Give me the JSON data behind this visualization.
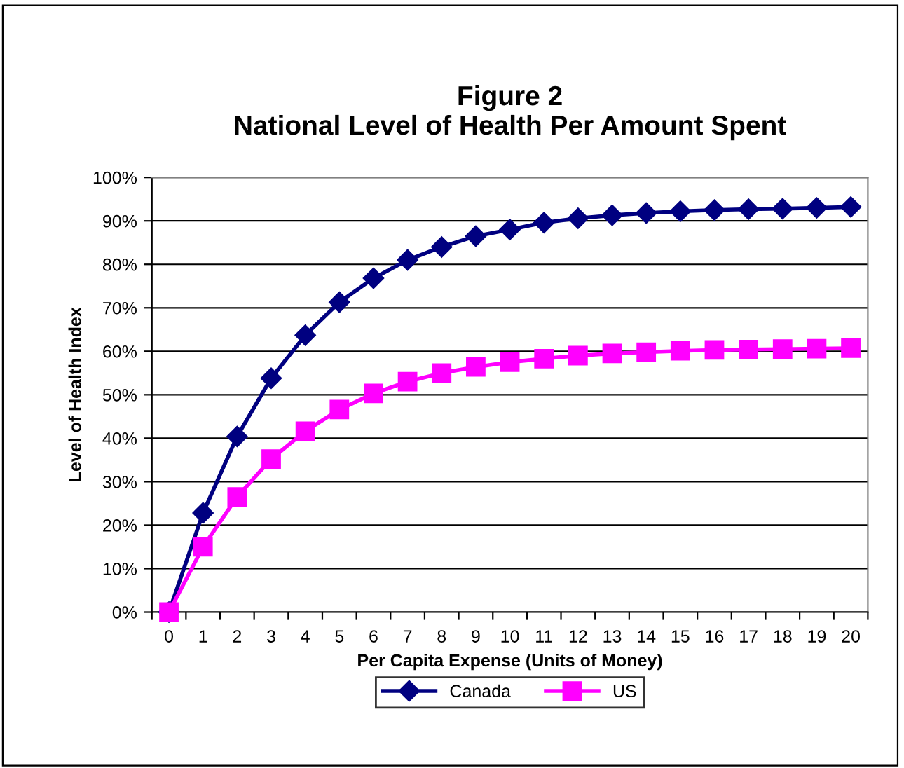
{
  "chart_data": {
    "type": "line",
    "title": "Figure 2\nNational Level of Health Per Amount Spent",
    "xlabel": "Per Capita Expense (Units of Money)",
    "ylabel": "Level of Health Index",
    "categories": [
      "0",
      "1",
      "2",
      "3",
      "4",
      "5",
      "6",
      "7",
      "8",
      "9",
      "10",
      "11",
      "12",
      "13",
      "14",
      "15",
      "16",
      "17",
      "18",
      "19",
      "20"
    ],
    "series": [
      {
        "name": "Canada",
        "color": "#000080",
        "marker": "diamond",
        "values": [
          0,
          22.8,
          40.4,
          53.8,
          63.7,
          71.3,
          76.8,
          81,
          84,
          86.5,
          88,
          89.6,
          90.6,
          91.3,
          91.8,
          92.2,
          92.5,
          92.7,
          92.8,
          93,
          93.2
        ]
      },
      {
        "name": "US",
        "color": "#ff00ff",
        "marker": "square",
        "values": [
          0,
          15,
          26.5,
          35.2,
          41.6,
          46.6,
          50.3,
          53,
          55,
          56.4,
          57.5,
          58.3,
          59,
          59.5,
          59.8,
          60.1,
          60.3,
          60.4,
          60.5,
          60.6,
          60.7
        ]
      }
    ],
    "ylim": [
      0,
      100
    ],
    "yticks": [
      {
        "value": 0,
        "label": "0%"
      },
      {
        "value": 10,
        "label": "10%"
      },
      {
        "value": 20,
        "label": "20%"
      },
      {
        "value": 30,
        "label": "30%"
      },
      {
        "value": 40,
        "label": "40%"
      },
      {
        "value": 50,
        "label": "50%"
      },
      {
        "value": 60,
        "label": "60%"
      },
      {
        "value": 70,
        "label": "70%"
      },
      {
        "value": 80,
        "label": "80%"
      },
      {
        "value": 90,
        "label": "90%"
      },
      {
        "value": 100,
        "label": "100%"
      }
    ],
    "grid": "y",
    "legend": "bottom",
    "line_style": "solid"
  }
}
